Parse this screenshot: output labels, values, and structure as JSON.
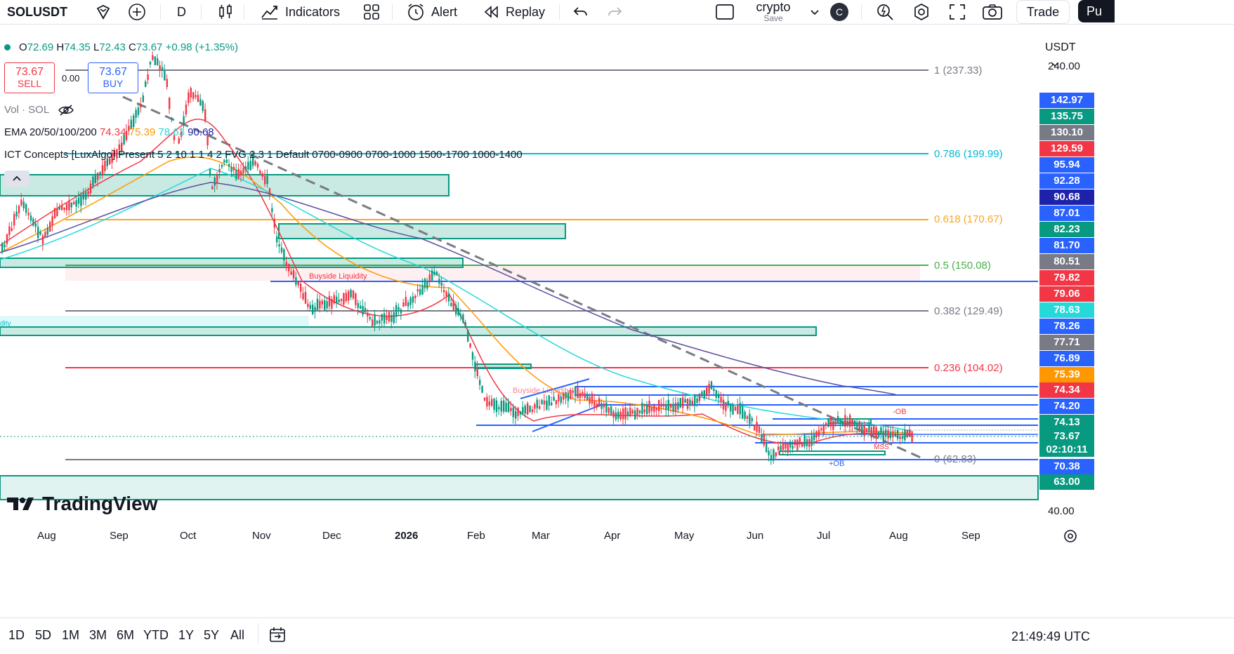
{
  "toolbar": {
    "symbol": "SOLUSDT",
    "interval": "D",
    "indicators_label": "Indicators",
    "alert_label": "Alert",
    "replay_label": "Replay",
    "layout_name": "crypto",
    "save_label": "Save",
    "avatar_letter": "C",
    "trade_label": "Trade",
    "publish_label": "Pu"
  },
  "legend": {
    "o_label": "O",
    "o_value": "72.69",
    "h_label": "H",
    "h_value": "74.35",
    "l_label": "L",
    "l_value": "72.43",
    "c_label": "C",
    "c_value": "73.67",
    "change": "+0.98 (+1.35%)",
    "sell_price": "73.67",
    "sell_label": "SELL",
    "spread": "0.00",
    "buy_price": "73.67",
    "buy_label": "BUY",
    "vol_label": "Vol · SOL",
    "ema_label": "EMA 20/50/100/200",
    "ema20": "74.34",
    "ema50": "75.39",
    "ema100": "78.63",
    "ema200": "90.68",
    "ict_label": "ICT Concepts [LuxAlgo] Present 5 2 10 1 1 4 2 FVG 2 3 1 Default 0700-0900 0700-1000 1500-1700 1000-1400"
  },
  "currency": "USDT",
  "fib_levels": [
    {
      "label": "1 (237.33)",
      "color": "#787b86"
    },
    {
      "label": "0.786 (199.99)",
      "color": "#00bcd4"
    },
    {
      "label": "0.618 (170.67)",
      "color": "#f9a825"
    },
    {
      "label": "0.5 (150.08)",
      "color": "#4caf50"
    },
    {
      "label": "0.382 (129.49)",
      "color": "#787b86"
    },
    {
      "label": "0.236 (104.02)",
      "color": "#f23645"
    },
    {
      "label": "0 (62.83)",
      "color": "#787b86"
    }
  ],
  "chart_labels": {
    "buyside1": "Buyside Liquidity",
    "buyside2": "Buyside Liquidity",
    "ob_minus": "-OB",
    "ob_plus": "+OB",
    "mss": "MSS",
    "dity": "dity",
    "watermark": "TradingView"
  },
  "price_axis": {
    "top": "240.00",
    "bottom": "40.00",
    "labels": [
      {
        "v": "142.97",
        "bg": "#2962ff"
      },
      {
        "v": "135.75",
        "bg": "#089981"
      },
      {
        "v": "130.10",
        "bg": "#787b86"
      },
      {
        "v": "129.59",
        "bg": "#f23645"
      },
      {
        "v": "95.94",
        "bg": "#2962ff"
      },
      {
        "v": "92.28",
        "bg": "#2962ff"
      },
      {
        "v": "90.68",
        "bg": "#1e22aa"
      },
      {
        "v": "87.01",
        "bg": "#2962ff"
      },
      {
        "v": "82.23",
        "bg": "#089981"
      },
      {
        "v": "81.70",
        "bg": "#2962ff"
      },
      {
        "v": "80.51",
        "bg": "#787b86"
      },
      {
        "v": "79.82",
        "bg": "#f23645"
      },
      {
        "v": "79.06",
        "bg": "#f23645"
      },
      {
        "v": "78.63",
        "bg": "#26d9d9"
      },
      {
        "v": "78.26",
        "bg": "#2962ff"
      },
      {
        "v": "77.71",
        "bg": "#787b86"
      },
      {
        "v": "76.89",
        "bg": "#2962ff"
      },
      {
        "v": "75.39",
        "bg": "#ff9800"
      },
      {
        "v": "74.34",
        "bg": "#f23645"
      },
      {
        "v": "74.20",
        "bg": "#2962ff"
      },
      {
        "v": "74.13",
        "bg": "#089981"
      },
      {
        "v": "73.67",
        "bg": "#089981"
      },
      {
        "v": "70.38",
        "bg": "#2962ff"
      },
      {
        "v": "63.00",
        "bg": "#089981"
      }
    ],
    "countdown": "02:10:11"
  },
  "time_axis": [
    "Aug",
    "Sep",
    "Oct",
    "Nov",
    "Dec",
    "2026",
    "Feb",
    "Mar",
    "Apr",
    "May",
    "Jun",
    "Jul",
    "Aug",
    "Sep"
  ],
  "bottom": {
    "ranges": [
      "1D",
      "5D",
      "1M",
      "3M",
      "6M",
      "YTD",
      "1Y",
      "5Y",
      "All"
    ],
    "clock": "21:49:49 UTC"
  },
  "colors": {
    "up": "#089981",
    "down": "#f23645",
    "accent": "#2962ff"
  }
}
